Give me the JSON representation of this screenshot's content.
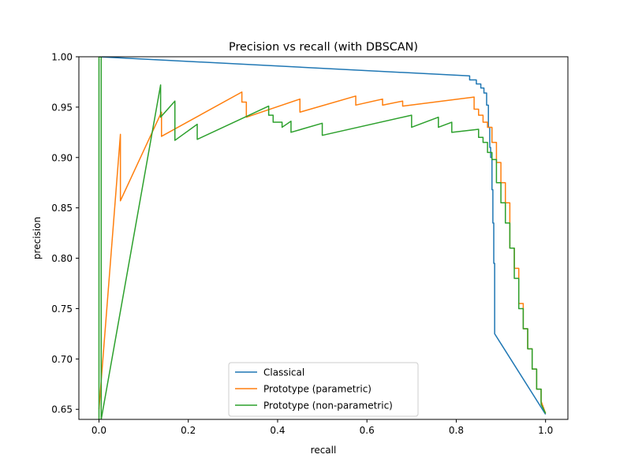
{
  "chart_data": {
    "type": "line",
    "title": "Precision vs recall (with DBSCAN)",
    "xlabel": "recall",
    "ylabel": "precision",
    "xlim": [
      -0.045,
      1.05
    ],
    "ylim": [
      0.64,
      1.0
    ],
    "xticks": [
      0.0,
      0.2,
      0.4,
      0.6,
      0.8,
      1.0
    ],
    "xtick_labels": [
      "0.0",
      "0.2",
      "0.4",
      "0.6",
      "0.8",
      "1.0"
    ],
    "yticks": [
      0.65,
      0.7,
      0.75,
      0.8,
      0.85,
      0.9,
      0.95,
      1.0
    ],
    "ytick_labels": [
      "0.65",
      "0.70",
      "0.75",
      "0.80",
      "0.85",
      "0.90",
      "0.95",
      "1.00"
    ],
    "grid": false,
    "legend_position": "bottom-center",
    "series": [
      {
        "name": "Classical",
        "color": "#1f77b4",
        "x": [
          0.0,
          0.83,
          0.83,
          0.845,
          0.845,
          0.855,
          0.855,
          0.862,
          0.862,
          0.868,
          0.868,
          0.872,
          0.872,
          0.875,
          0.875,
          0.877,
          0.877,
          0.88,
          0.88,
          0.882,
          0.882,
          0.884,
          0.884,
          0.886,
          0.886,
          1.0
        ],
        "y": [
          1.0,
          0.981,
          0.977,
          0.977,
          0.973,
          0.973,
          0.969,
          0.969,
          0.964,
          0.964,
          0.952,
          0.952,
          0.93,
          0.93,
          0.91,
          0.91,
          0.9,
          0.9,
          0.868,
          0.868,
          0.835,
          0.835,
          0.795,
          0.795,
          0.725,
          0.645
        ]
      },
      {
        "name": "Prototype (parametric)",
        "color": "#ff7f0e",
        "x": [
          0.0,
          0.048,
          0.048,
          0.14,
          0.14,
          0.32,
          0.32,
          0.33,
          0.33,
          0.45,
          0.45,
          0.575,
          0.575,
          0.635,
          0.635,
          0.68,
          0.68,
          0.84,
          0.84,
          0.85,
          0.85,
          0.86,
          0.86,
          0.87,
          0.87,
          0.88,
          0.88,
          0.89,
          0.89,
          0.9,
          0.9,
          0.91,
          0.91,
          0.92,
          0.92,
          0.93,
          0.93,
          0.94,
          0.94,
          0.95,
          0.95,
          0.96,
          0.96,
          0.97,
          0.97,
          0.98,
          0.98,
          0.99,
          0.99,
          1.0
        ],
        "y": [
          0.65,
          0.923,
          0.857,
          0.945,
          0.921,
          0.965,
          0.955,
          0.955,
          0.94,
          0.958,
          0.945,
          0.961,
          0.952,
          0.958,
          0.952,
          0.956,
          0.951,
          0.96,
          0.948,
          0.948,
          0.942,
          0.942,
          0.935,
          0.935,
          0.93,
          0.93,
          0.915,
          0.915,
          0.895,
          0.895,
          0.875,
          0.875,
          0.855,
          0.855,
          0.81,
          0.81,
          0.79,
          0.79,
          0.755,
          0.755,
          0.73,
          0.73,
          0.71,
          0.71,
          0.69,
          0.69,
          0.67,
          0.67,
          0.658,
          0.646
        ]
      },
      {
        "name": "Prototype (non-parametric)",
        "color": "#2ca02c",
        "x": [
          0.0,
          0.0,
          0.005,
          0.005,
          0.138,
          0.138,
          0.17,
          0.17,
          0.22,
          0.22,
          0.38,
          0.38,
          0.39,
          0.39,
          0.41,
          0.41,
          0.43,
          0.43,
          0.5,
          0.5,
          0.7,
          0.7,
          0.76,
          0.76,
          0.79,
          0.79,
          0.85,
          0.85,
          0.86,
          0.86,
          0.87,
          0.87,
          0.88,
          0.88,
          0.89,
          0.89,
          0.9,
          0.9,
          0.91,
          0.91,
          0.92,
          0.92,
          0.93,
          0.93,
          0.94,
          0.94,
          0.95,
          0.95,
          0.96,
          0.96,
          0.97,
          0.97,
          0.98,
          0.98,
          0.99,
          0.99,
          1.0
        ],
        "y": [
          0.64,
          1.0,
          1.0,
          0.64,
          0.972,
          0.94,
          0.956,
          0.917,
          0.933,
          0.918,
          0.951,
          0.942,
          0.942,
          0.935,
          0.935,
          0.93,
          0.936,
          0.925,
          0.934,
          0.922,
          0.942,
          0.93,
          0.94,
          0.93,
          0.935,
          0.925,
          0.928,
          0.92,
          0.92,
          0.915,
          0.915,
          0.905,
          0.905,
          0.898,
          0.898,
          0.875,
          0.875,
          0.855,
          0.855,
          0.835,
          0.835,
          0.81,
          0.81,
          0.78,
          0.78,
          0.75,
          0.75,
          0.73,
          0.73,
          0.71,
          0.71,
          0.69,
          0.69,
          0.67,
          0.67,
          0.655,
          0.646
        ]
      }
    ]
  }
}
